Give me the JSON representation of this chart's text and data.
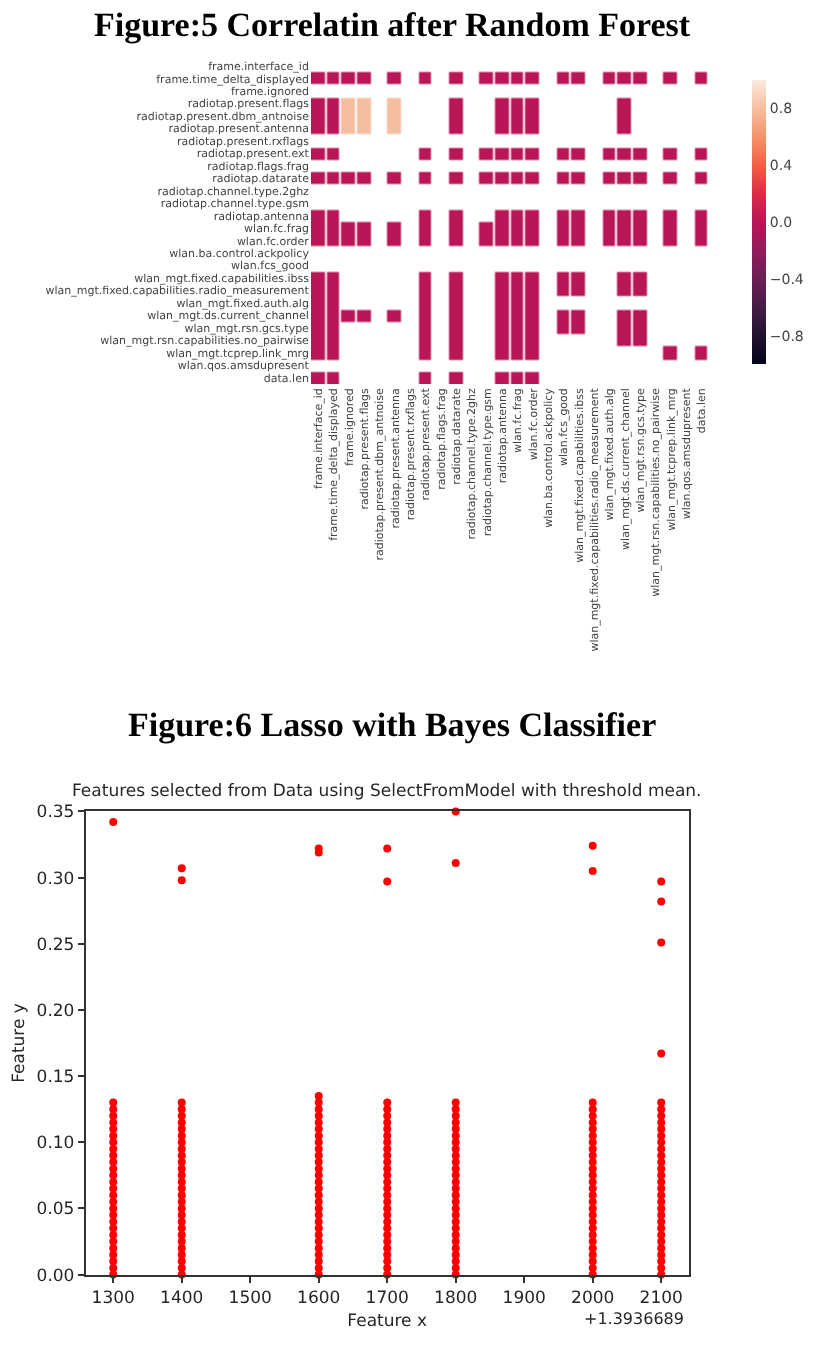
{
  "chart_data": [
    {
      "type": "heatmap",
      "title": "Figure:5 Correlatin after Random Forest",
      "categories": [
        "frame.interface_id",
        "frame.time_delta_displayed",
        "frame.ignored",
        "radiotap.present.flags",
        "radiotap.present.dbm_antnoise",
        "radiotap.present.antenna",
        "radiotap.present.rxflags",
        "radiotap.present.ext",
        "radiotap.flags.frag",
        "radiotap.datarate",
        "radiotap.channel.type.2ghz",
        "radiotap.channel.type.gsm",
        "radiotap.antenna",
        "wlan.fc.frag",
        "wlan.fc.order",
        "wlan.ba.control.ackpolicy",
        "wlan.fcs_good",
        "wlan_mgt.fixed.capabilities.ibss",
        "wlan_mgt.fixed.capabilities.radio_measurement",
        "wlan_mgt.fixed.auth.alg",
        "wlan_mgt.ds.current_channel",
        "wlan_mgt.rsn.gcs.type",
        "wlan_mgt.rsn.capabilities.no_pairwise",
        "wlan_mgt.tcprep.link_mrg",
        "wlan.qos.amsdupresent",
        "data.len"
      ],
      "y_categories": [
        "frame.interface_id",
        "frame.time_delta_displayed",
        "frame.ignored",
        "radiotap.present.flags",
        "radiotap.present.dbm_antnoise",
        "radiotap.present.antenna",
        "radiotap.present.rxflags",
        "radiotap.present.ext",
        "radiotap.flags.frag",
        "radiotap.datarate",
        "radiotap.channel.type.2ghz",
        "radiotap.channel.type.gsm",
        "radiotap.antenna",
        "wlan.fc.frag",
        "wlan.fc.order",
        "wlan.ba.control.ackpolicy",
        "wlan.fcs_good",
        "wlan_mgt.fixed.capabilities.ibss",
        "wlan_mgt.fixed.capabilities.radio_measurement",
        "wlan_mgt.fixed.auth.alg",
        "wlan_mgt.ds.current_channel",
        "wlan_mgt.rsn.gcs.type",
        "wlan_mgt.rsn.capabilities.no_pairwise",
        "wlan_mgt.tcprep.link_mrg",
        "wlan.qos.amsdupresent",
        "data.len"
      ],
      "cells": [
        [
          null,
          null,
          null,
          null,
          null,
          null,
          null,
          null,
          null,
          null,
          null,
          null,
          null,
          null,
          null,
          null,
          null,
          null,
          null,
          null,
          null,
          null,
          null,
          null,
          null,
          null
        ],
        [
          0,
          0,
          0,
          0,
          null,
          0,
          null,
          0,
          null,
          0,
          null,
          0,
          0,
          0,
          0,
          null,
          0,
          0,
          null,
          0,
          0,
          0,
          null,
          0,
          null,
          0
        ],
        [
          null,
          null,
          null,
          null,
          null,
          null,
          null,
          null,
          null,
          null,
          null,
          null,
          null,
          null,
          null,
          null,
          null,
          null,
          null,
          null,
          null,
          null,
          null,
          null,
          null,
          null
        ],
        [
          0,
          0,
          0.8,
          0.8,
          null,
          0.8,
          null,
          null,
          null,
          0,
          null,
          null,
          0,
          0,
          0,
          null,
          null,
          null,
          null,
          null,
          0,
          null,
          null,
          null,
          null,
          null
        ],
        [
          0,
          0,
          0.8,
          0.8,
          null,
          0.8,
          null,
          null,
          null,
          0,
          null,
          null,
          0,
          0,
          0,
          null,
          null,
          null,
          null,
          null,
          0,
          null,
          null,
          null,
          null,
          null
        ],
        [
          0,
          0,
          0.8,
          0.8,
          null,
          0.8,
          null,
          null,
          null,
          0,
          null,
          null,
          0,
          0,
          0,
          null,
          null,
          null,
          null,
          null,
          0,
          null,
          null,
          null,
          null,
          null
        ],
        [
          null,
          null,
          null,
          null,
          null,
          null,
          null,
          null,
          null,
          null,
          null,
          null,
          null,
          null,
          null,
          null,
          null,
          null,
          null,
          null,
          null,
          null,
          null,
          null,
          null,
          null
        ],
        [
          0,
          0,
          null,
          null,
          null,
          null,
          null,
          0,
          null,
          0,
          null,
          0,
          0,
          0,
          0,
          null,
          0,
          0,
          null,
          0,
          0,
          0,
          null,
          0,
          null,
          0
        ],
        [
          null,
          null,
          null,
          null,
          null,
          null,
          null,
          null,
          null,
          null,
          null,
          null,
          null,
          null,
          null,
          null,
          null,
          null,
          null,
          null,
          null,
          null,
          null,
          null,
          null,
          null
        ],
        [
          0,
          0,
          0,
          0,
          null,
          0,
          null,
          0,
          null,
          0,
          null,
          0,
          0,
          0,
          0,
          null,
          0,
          0,
          null,
          0,
          0,
          0,
          null,
          0,
          null,
          0
        ],
        [
          null,
          null,
          null,
          null,
          null,
          null,
          null,
          null,
          null,
          null,
          null,
          null,
          null,
          null,
          null,
          null,
          null,
          null,
          null,
          null,
          null,
          null,
          null,
          null,
          null,
          null
        ],
        [
          null,
          null,
          null,
          null,
          null,
          null,
          null,
          null,
          null,
          null,
          null,
          null,
          null,
          null,
          null,
          null,
          null,
          null,
          null,
          null,
          null,
          null,
          null,
          null,
          null,
          null
        ],
        [
          0,
          0,
          null,
          null,
          null,
          null,
          null,
          0,
          null,
          0,
          null,
          null,
          0,
          0,
          0,
          null,
          0,
          0,
          null,
          0,
          0,
          0,
          null,
          0,
          null,
          0
        ],
        [
          0,
          0,
          0,
          0,
          null,
          0,
          null,
          0,
          null,
          0,
          null,
          0,
          0,
          0,
          0,
          null,
          0,
          0,
          null,
          0,
          0,
          0,
          null,
          0,
          null,
          0
        ],
        [
          0,
          0,
          0,
          0,
          null,
          0,
          null,
          0,
          null,
          0,
          null,
          0,
          0,
          0,
          0,
          null,
          0,
          0,
          null,
          0,
          0,
          0,
          null,
          0,
          null,
          0
        ],
        [
          null,
          null,
          null,
          null,
          null,
          null,
          null,
          null,
          null,
          null,
          null,
          null,
          null,
          null,
          null,
          null,
          null,
          null,
          null,
          null,
          null,
          null,
          null,
          null,
          null,
          null
        ],
        [
          null,
          null,
          null,
          null,
          null,
          null,
          null,
          null,
          null,
          null,
          null,
          null,
          null,
          null,
          null,
          null,
          null,
          null,
          null,
          null,
          null,
          null,
          null,
          null,
          null,
          null
        ],
        [
          0,
          0,
          null,
          null,
          null,
          null,
          null,
          0,
          null,
          0,
          null,
          null,
          0,
          0,
          0,
          null,
          0,
          0,
          null,
          null,
          0,
          0,
          null,
          null,
          null,
          null
        ],
        [
          0,
          0,
          null,
          null,
          null,
          null,
          null,
          0,
          null,
          0,
          null,
          null,
          0,
          0,
          0,
          null,
          0,
          0,
          null,
          null,
          0,
          0,
          null,
          null,
          null,
          null
        ],
        [
          0,
          0,
          null,
          null,
          null,
          null,
          null,
          0,
          null,
          0,
          null,
          null,
          0,
          0,
          0,
          null,
          null,
          null,
          null,
          null,
          null,
          null,
          null,
          null,
          null,
          null
        ],
        [
          0,
          0,
          0,
          0,
          null,
          0,
          null,
          0,
          null,
          0,
          null,
          null,
          0,
          0,
          0,
          null,
          0,
          0,
          null,
          null,
          0,
          0,
          null,
          null,
          null,
          null
        ],
        [
          0,
          0,
          null,
          null,
          null,
          null,
          null,
          0,
          null,
          0,
          null,
          null,
          0,
          0,
          0,
          null,
          0,
          0,
          null,
          null,
          0,
          0,
          null,
          null,
          null,
          null
        ],
        [
          0,
          0,
          null,
          null,
          null,
          null,
          null,
          0,
          null,
          0,
          null,
          null,
          0,
          0,
          0,
          null,
          null,
          null,
          null,
          null,
          0,
          0,
          null,
          null,
          null,
          null
        ],
        [
          0,
          0,
          null,
          null,
          null,
          null,
          null,
          0,
          null,
          0,
          null,
          null,
          0,
          0,
          0,
          null,
          null,
          null,
          null,
          null,
          null,
          null,
          null,
          0,
          null,
          0
        ],
        [
          null,
          null,
          null,
          null,
          null,
          null,
          null,
          null,
          null,
          null,
          null,
          null,
          null,
          null,
          null,
          null,
          null,
          null,
          null,
          null,
          null,
          null,
          null,
          null,
          null,
          null
        ],
        [
          0,
          0,
          null,
          null,
          null,
          null,
          null,
          0,
          null,
          0,
          null,
          null,
          0,
          0,
          0,
          null,
          null,
          null,
          null,
          null,
          null,
          null,
          null,
          null,
          null,
          null
        ]
      ],
      "clim": [
        -1,
        1
      ],
      "cticks": [
        {
          "value": -0.8,
          "label": "−0.8"
        },
        {
          "value": -0.4,
          "label": "−0.4"
        },
        {
          "value": 0,
          "label": "0.0"
        },
        {
          "value": 0.4,
          "label": "0.4"
        },
        {
          "value": 0.8,
          "label": "0.8"
        }
      ]
    },
    {
      "type": "scatter",
      "title": "Figure:6 Lasso with Bayes Classifier",
      "subtitle": "Features selected from Data using SelectFromModel with threshold mean.",
      "xlabel": "Feature x",
      "ylabel": "Feature y",
      "annotations": [
        "+1.3936689"
      ],
      "xlim": [
        1260,
        2140
      ],
      "xticks": [
        1300,
        1400,
        1500,
        1600,
        1700,
        1800,
        1900,
        2000,
        2100
      ],
      "ylim": [
        0,
        0.35
      ],
      "yticks": [
        {
          "value": 0,
          "label": "0.00"
        },
        {
          "value": 0.05,
          "label": "0.05"
        },
        {
          "value": 0.1,
          "label": "0.10"
        },
        {
          "value": 0.15,
          "label": "0.15"
        },
        {
          "value": 0.2,
          "label": "0.20"
        },
        {
          "value": 0.25,
          "label": "0.25"
        },
        {
          "value": 0.3,
          "label": "0.30"
        },
        {
          "value": 0.35,
          "label": "0.35"
        }
      ],
      "marker": "circle",
      "series": [
        {
          "color": "#ff0000",
          "x": [
            1300,
            1300,
            1300,
            1300,
            1300,
            1300,
            1300,
            1300,
            1300,
            1300,
            1300,
            1300,
            1300,
            1300,
            1300,
            1300,
            1300,
            1300,
            1300,
            1300,
            1300,
            1300,
            1300,
            1300,
            1300,
            1300,
            1300,
            1300
          ],
          "values": [
            0,
            0.005,
            0.01,
            0.015,
            0.02,
            0.025,
            0.03,
            0.035,
            0.04,
            0.045,
            0.05,
            0.055,
            0.06,
            0.065,
            0.07,
            0.075,
            0.08,
            0.085,
            0.09,
            0.095,
            0.1,
            0.105,
            0.11,
            0.115,
            0.12,
            0.125,
            0.13,
            0.342
          ]
        },
        {
          "color": "#ff0000",
          "x": [
            1400,
            1400,
            1400,
            1400,
            1400,
            1400,
            1400,
            1400,
            1400,
            1400,
            1400,
            1400,
            1400,
            1400,
            1400,
            1400,
            1400,
            1400,
            1400,
            1400,
            1400,
            1400,
            1400,
            1400,
            1400,
            1400,
            1400,
            1400,
            1400
          ],
          "values": [
            0,
            0.005,
            0.01,
            0.015,
            0.02,
            0.025,
            0.03,
            0.035,
            0.04,
            0.045,
            0.05,
            0.055,
            0.06,
            0.065,
            0.07,
            0.075,
            0.08,
            0.085,
            0.09,
            0.095,
            0.1,
            0.105,
            0.11,
            0.115,
            0.12,
            0.125,
            0.13,
            0.298,
            0.307
          ]
        },
        {
          "color": "#ff0000",
          "x": [
            1600,
            1600,
            1600,
            1600,
            1600,
            1600,
            1600,
            1600,
            1600,
            1600,
            1600,
            1600,
            1600,
            1600,
            1600,
            1600,
            1600,
            1600,
            1600,
            1600,
            1600,
            1600,
            1600,
            1600,
            1600,
            1600,
            1600,
            1600,
            1600,
            1600
          ],
          "values": [
            0,
            0.005,
            0.01,
            0.015,
            0.02,
            0.025,
            0.03,
            0.035,
            0.04,
            0.045,
            0.05,
            0.055,
            0.06,
            0.065,
            0.07,
            0.075,
            0.08,
            0.085,
            0.09,
            0.095,
            0.1,
            0.105,
            0.11,
            0.115,
            0.12,
            0.125,
            0.13,
            0.135,
            0.319,
            0.322
          ]
        },
        {
          "color": "#ff0000",
          "x": [
            1700,
            1700,
            1700,
            1700,
            1700,
            1700,
            1700,
            1700,
            1700,
            1700,
            1700,
            1700,
            1700,
            1700,
            1700,
            1700,
            1700,
            1700,
            1700,
            1700,
            1700,
            1700,
            1700,
            1700,
            1700,
            1700,
            1700,
            1700,
            1700
          ],
          "values": [
            0,
            0.005,
            0.01,
            0.015,
            0.02,
            0.025,
            0.03,
            0.035,
            0.04,
            0.045,
            0.05,
            0.055,
            0.06,
            0.065,
            0.07,
            0.075,
            0.08,
            0.085,
            0.09,
            0.095,
            0.1,
            0.105,
            0.11,
            0.115,
            0.12,
            0.125,
            0.13,
            0.297,
            0.322
          ]
        },
        {
          "color": "#ff0000",
          "x": [
            1800,
            1800,
            1800,
            1800,
            1800,
            1800,
            1800,
            1800,
            1800,
            1800,
            1800,
            1800,
            1800,
            1800,
            1800,
            1800,
            1800,
            1800,
            1800,
            1800,
            1800,
            1800,
            1800,
            1800,
            1800,
            1800,
            1800,
            1800,
            1800
          ],
          "values": [
            0,
            0.005,
            0.01,
            0.015,
            0.02,
            0.025,
            0.03,
            0.035,
            0.04,
            0.045,
            0.05,
            0.055,
            0.06,
            0.065,
            0.07,
            0.075,
            0.08,
            0.085,
            0.09,
            0.095,
            0.1,
            0.105,
            0.11,
            0.115,
            0.12,
            0.125,
            0.13,
            0.311,
            0.35
          ]
        },
        {
          "color": "#ff0000",
          "x": [
            2000,
            2000,
            2000,
            2000,
            2000,
            2000,
            2000,
            2000,
            2000,
            2000,
            2000,
            2000,
            2000,
            2000,
            2000,
            2000,
            2000,
            2000,
            2000,
            2000,
            2000,
            2000,
            2000,
            2000,
            2000,
            2000,
            2000,
            2000,
            2000
          ],
          "values": [
            0,
            0.005,
            0.01,
            0.015,
            0.02,
            0.025,
            0.03,
            0.035,
            0.04,
            0.045,
            0.05,
            0.055,
            0.06,
            0.065,
            0.07,
            0.075,
            0.08,
            0.085,
            0.09,
            0.095,
            0.1,
            0.105,
            0.11,
            0.115,
            0.12,
            0.125,
            0.13,
            0.305,
            0.324
          ]
        },
        {
          "color": "#ff0000",
          "x": [
            2100,
            2100,
            2100,
            2100,
            2100,
            2100,
            2100,
            2100,
            2100,
            2100,
            2100,
            2100,
            2100,
            2100,
            2100,
            2100,
            2100,
            2100,
            2100,
            2100,
            2100,
            2100,
            2100,
            2100,
            2100,
            2100,
            2100,
            2100,
            2100,
            2100,
            2100
          ],
          "values": [
            0,
            0.005,
            0.01,
            0.015,
            0.02,
            0.025,
            0.03,
            0.035,
            0.04,
            0.045,
            0.05,
            0.055,
            0.06,
            0.065,
            0.07,
            0.075,
            0.08,
            0.085,
            0.09,
            0.095,
            0.1,
            0.105,
            0.11,
            0.115,
            0.12,
            0.125,
            0.13,
            0.167,
            0.251,
            0.282,
            0.297
          ]
        }
      ]
    }
  ]
}
